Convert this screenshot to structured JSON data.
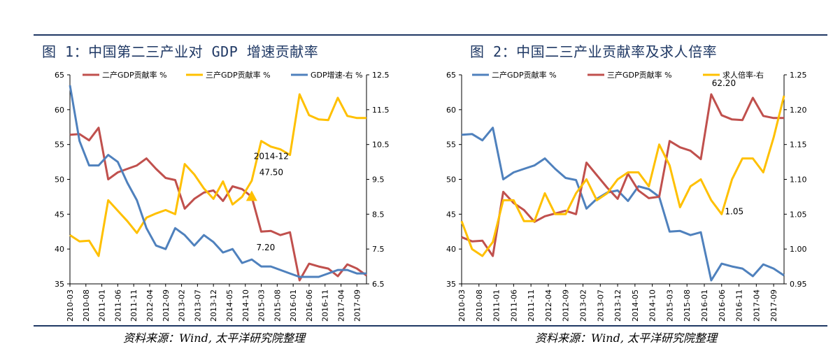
{
  "figures": [
    {
      "title": "图 1：中国第二三产业对 GDP 增速贡献率",
      "source": "资料来源：Wind, 太平洋研究院整理"
    },
    {
      "title": "图 2：中国二三产业贡献率及求人倍率",
      "source": "资料来源：Wind, 太平洋研究院整理"
    }
  ],
  "chart_data": [
    {
      "type": "line",
      "x_tick_labels": [
        "2010-03",
        "2010-08",
        "2011-01",
        "2011-06",
        "2011-11",
        "2012-04",
        "2012-09",
        "2013-02",
        "2013-07",
        "2013-12",
        "2014-05",
        "2014-10",
        "2015-03",
        "2015-08",
        "2016-01",
        "2016-06",
        "2016-11",
        "2017-04",
        "2017-09"
      ],
      "x": [
        "2010-03",
        "2010-06",
        "2010-09",
        "2010-12",
        "2011-03",
        "2011-06",
        "2011-09",
        "2011-12",
        "2012-03",
        "2012-06",
        "2012-09",
        "2012-12",
        "2013-03",
        "2013-06",
        "2013-09",
        "2013-12",
        "2014-03",
        "2014-06",
        "2014-09",
        "2014-12",
        "2015-03",
        "2015-06",
        "2015-09",
        "2015-12",
        "2016-03",
        "2016-06",
        "2016-09",
        "2016-12",
        "2017-03",
        "2017-06",
        "2017-09",
        "2017-12"
      ],
      "ylim_left": [
        35,
        65
      ],
      "yticks_left": [
        35,
        40,
        45,
        50,
        55,
        60,
        65
      ],
      "ylim_right": [
        6.5,
        12.5
      ],
      "yticks_right": [
        "6.5",
        "7.5",
        "8.5",
        "9.5",
        "10.5",
        "11.5",
        "12.5"
      ],
      "series": [
        {
          "name": "二产GDP贡献率 %",
          "axis": "left",
          "color": "#c0504d",
          "values": [
            56.4,
            56.5,
            55.6,
            57.4,
            50.0,
            51.0,
            51.5,
            52.0,
            53.0,
            51.5,
            50.2,
            49.9,
            45.8,
            47.2,
            48.1,
            48.4,
            46.9,
            49.0,
            48.6,
            47.5,
            42.5,
            42.6,
            42.0,
            42.4,
            35.5,
            37.9,
            37.5,
            37.2,
            36.1,
            37.8,
            37.2,
            36.2
          ]
        },
        {
          "name": "三产GDP贡献率 %",
          "axis": "left",
          "color": "#ffc000",
          "values": [
            42.0,
            41.1,
            41.2,
            39.0,
            47.0,
            45.5,
            44.0,
            42.3,
            44.5,
            45.1,
            45.6,
            45.0,
            52.2,
            50.7,
            48.7,
            47.2,
            49.7,
            46.4,
            47.5,
            49.8,
            55.5,
            54.7,
            54.3,
            53.5,
            62.2,
            59.2,
            58.6,
            58.5,
            61.7,
            59.1,
            58.8,
            58.8
          ]
        },
        {
          "name": "GDP增速-右 %",
          "axis": "right",
          "color": "#4f81bd",
          "values": [
            12.2,
            10.6,
            9.9,
            9.9,
            10.2,
            10.0,
            9.4,
            8.9,
            8.1,
            7.6,
            7.5,
            8.1,
            7.9,
            7.6,
            7.9,
            7.7,
            7.4,
            7.5,
            7.1,
            7.2,
            7.0,
            7.0,
            6.9,
            6.8,
            6.7,
            6.7,
            6.7,
            6.8,
            6.9,
            6.9,
            6.8,
            6.8
          ]
        }
      ],
      "annotations": [
        {
          "text": "2014-12",
          "x": "2014-12",
          "y": 47.5
        },
        {
          "text": "47.50",
          "x": "2014-12",
          "y": 47.5
        },
        {
          "text": "7.20",
          "x": "2014-12",
          "axis": "right",
          "y": 7.2
        }
      ],
      "legend": "top"
    },
    {
      "type": "line",
      "x_tick_labels": [
        "2010-03",
        "2010-08",
        "2011-01",
        "2011-06",
        "2011-11",
        "2012-04",
        "2012-09",
        "2013-02",
        "2013-07",
        "2013-12",
        "2014-05",
        "2014-10",
        "2015-03",
        "2015-08",
        "2016-01",
        "2016-06",
        "2016-11",
        "2017-04",
        "2017-09"
      ],
      "x": [
        "2010-03",
        "2010-06",
        "2010-09",
        "2010-12",
        "2011-03",
        "2011-06",
        "2011-09",
        "2011-12",
        "2012-03",
        "2012-06",
        "2012-09",
        "2012-12",
        "2013-03",
        "2013-06",
        "2013-09",
        "2013-12",
        "2014-03",
        "2014-06",
        "2014-09",
        "2014-12",
        "2015-03",
        "2015-06",
        "2015-09",
        "2015-12",
        "2016-03",
        "2016-06",
        "2016-09",
        "2016-12",
        "2017-03",
        "2017-06",
        "2017-09",
        "2017-12"
      ],
      "ylim_left": [
        35,
        65
      ],
      "yticks_left": [
        35,
        40,
        45,
        50,
        55,
        60,
        65
      ],
      "ylim_right": [
        0.95,
        1.25
      ],
      "yticks_right": [
        "0.95",
        "1.00",
        "1.05",
        "1.10",
        "1.15",
        "1.20",
        "1.25"
      ],
      "series": [
        {
          "name": "二产GDP贡献率 %",
          "axis": "left",
          "color": "#4f81bd",
          "values": [
            56.4,
            56.5,
            55.6,
            57.4,
            50.0,
            51.0,
            51.5,
            52.0,
            53.0,
            51.5,
            50.2,
            49.9,
            45.8,
            47.2,
            48.1,
            48.4,
            46.9,
            49.0,
            48.6,
            47.5,
            42.5,
            42.6,
            42.0,
            42.4,
            35.5,
            37.9,
            37.5,
            37.2,
            36.1,
            37.8,
            37.2,
            36.2
          ]
        },
        {
          "name": "三产GDP贡献率 %",
          "axis": "left",
          "color": "#c0504d",
          "values": [
            41.7,
            41.1,
            41.2,
            39.0,
            48.2,
            46.6,
            45.6,
            43.9,
            44.7,
            45.1,
            45.5,
            45.0,
            52.4,
            50.6,
            48.8,
            47.2,
            50.8,
            48.4,
            47.3,
            47.5,
            55.5,
            54.6,
            54.1,
            52.9,
            62.2,
            59.2,
            58.6,
            58.5,
            61.7,
            59.1,
            58.8,
            58.8
          ]
        },
        {
          "name": "求人倍率-右",
          "axis": "right",
          "color": "#ffc000",
          "values": [
            1.04,
            1.0,
            0.99,
            1.01,
            1.07,
            1.07,
            1.04,
            1.04,
            1.08,
            1.05,
            1.05,
            1.08,
            1.1,
            1.07,
            1.08,
            1.1,
            1.11,
            1.11,
            1.09,
            1.15,
            1.12,
            1.06,
            1.09,
            1.1,
            1.07,
            1.05,
            1.1,
            1.13,
            1.13,
            1.11,
            1.16,
            1.22
          ]
        }
      ],
      "annotations": [
        {
          "text": "62.20",
          "x": "2016-03",
          "y": 62.2
        },
        {
          "text": "1.05",
          "x": "2016-06",
          "axis": "right",
          "y": 1.05
        }
      ],
      "legend": "top"
    }
  ]
}
